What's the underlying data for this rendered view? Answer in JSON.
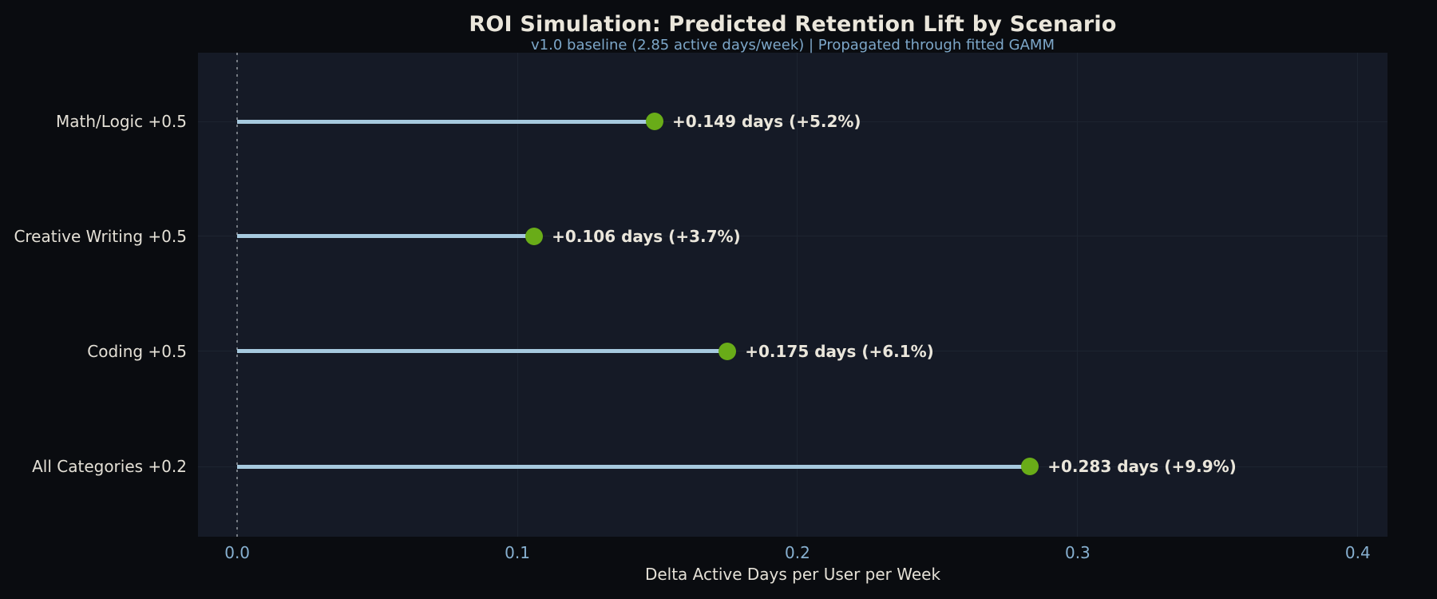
{
  "chart_data": {
    "type": "lollipop",
    "orientation": "horizontal",
    "title": "ROI Simulation: Predicted Retention Lift by Scenario",
    "subtitle": "v1.0 baseline (2.85 active days/week) | Propagated through fitted GAMM",
    "xlabel": "Delta Active Days per User per Week",
    "categories": [
      "Math/Logic +0.5",
      "Creative Writing +0.5",
      "Coding +0.5",
      "All Categories +0.2"
    ],
    "values": [
      0.149,
      0.106,
      0.175,
      0.283
    ],
    "percent_lift": [
      "+5.2%",
      "+3.7%",
      "+6.1%",
      "+9.9%"
    ],
    "annotations": [
      "+0.149 days (+5.2%)",
      "+0.106 days (+3.7%)",
      "+0.175 days (+6.1%)",
      "+0.283 days (+9.9%)"
    ],
    "baseline_value": 0,
    "xticks": {
      "values": [
        0,
        0.1,
        0.2,
        0.3,
        0.4
      ],
      "labels": [
        "0.0",
        "0.1",
        "0.2",
        "0.3",
        "0.4"
      ]
    },
    "xlim": [
      -0.014,
      0.4106
    ],
    "grid": true,
    "legend": "none",
    "zero_line_style": "dotted",
    "row_fractions": [
      0.142,
      0.3795,
      0.617,
      0.8548
    ],
    "colors": {
      "figure_bg": "#0a0c10",
      "plot_bg": "#151a26",
      "grid": "#1d2430",
      "stem": "#a6c9de",
      "dot": "#69ac18",
      "title_text": "#eae6db",
      "label_text": "#e4e0d6",
      "tick_text": "#87b0d0",
      "subtitle_text": "#7da7c9",
      "zero_line": "#757a82"
    }
  }
}
